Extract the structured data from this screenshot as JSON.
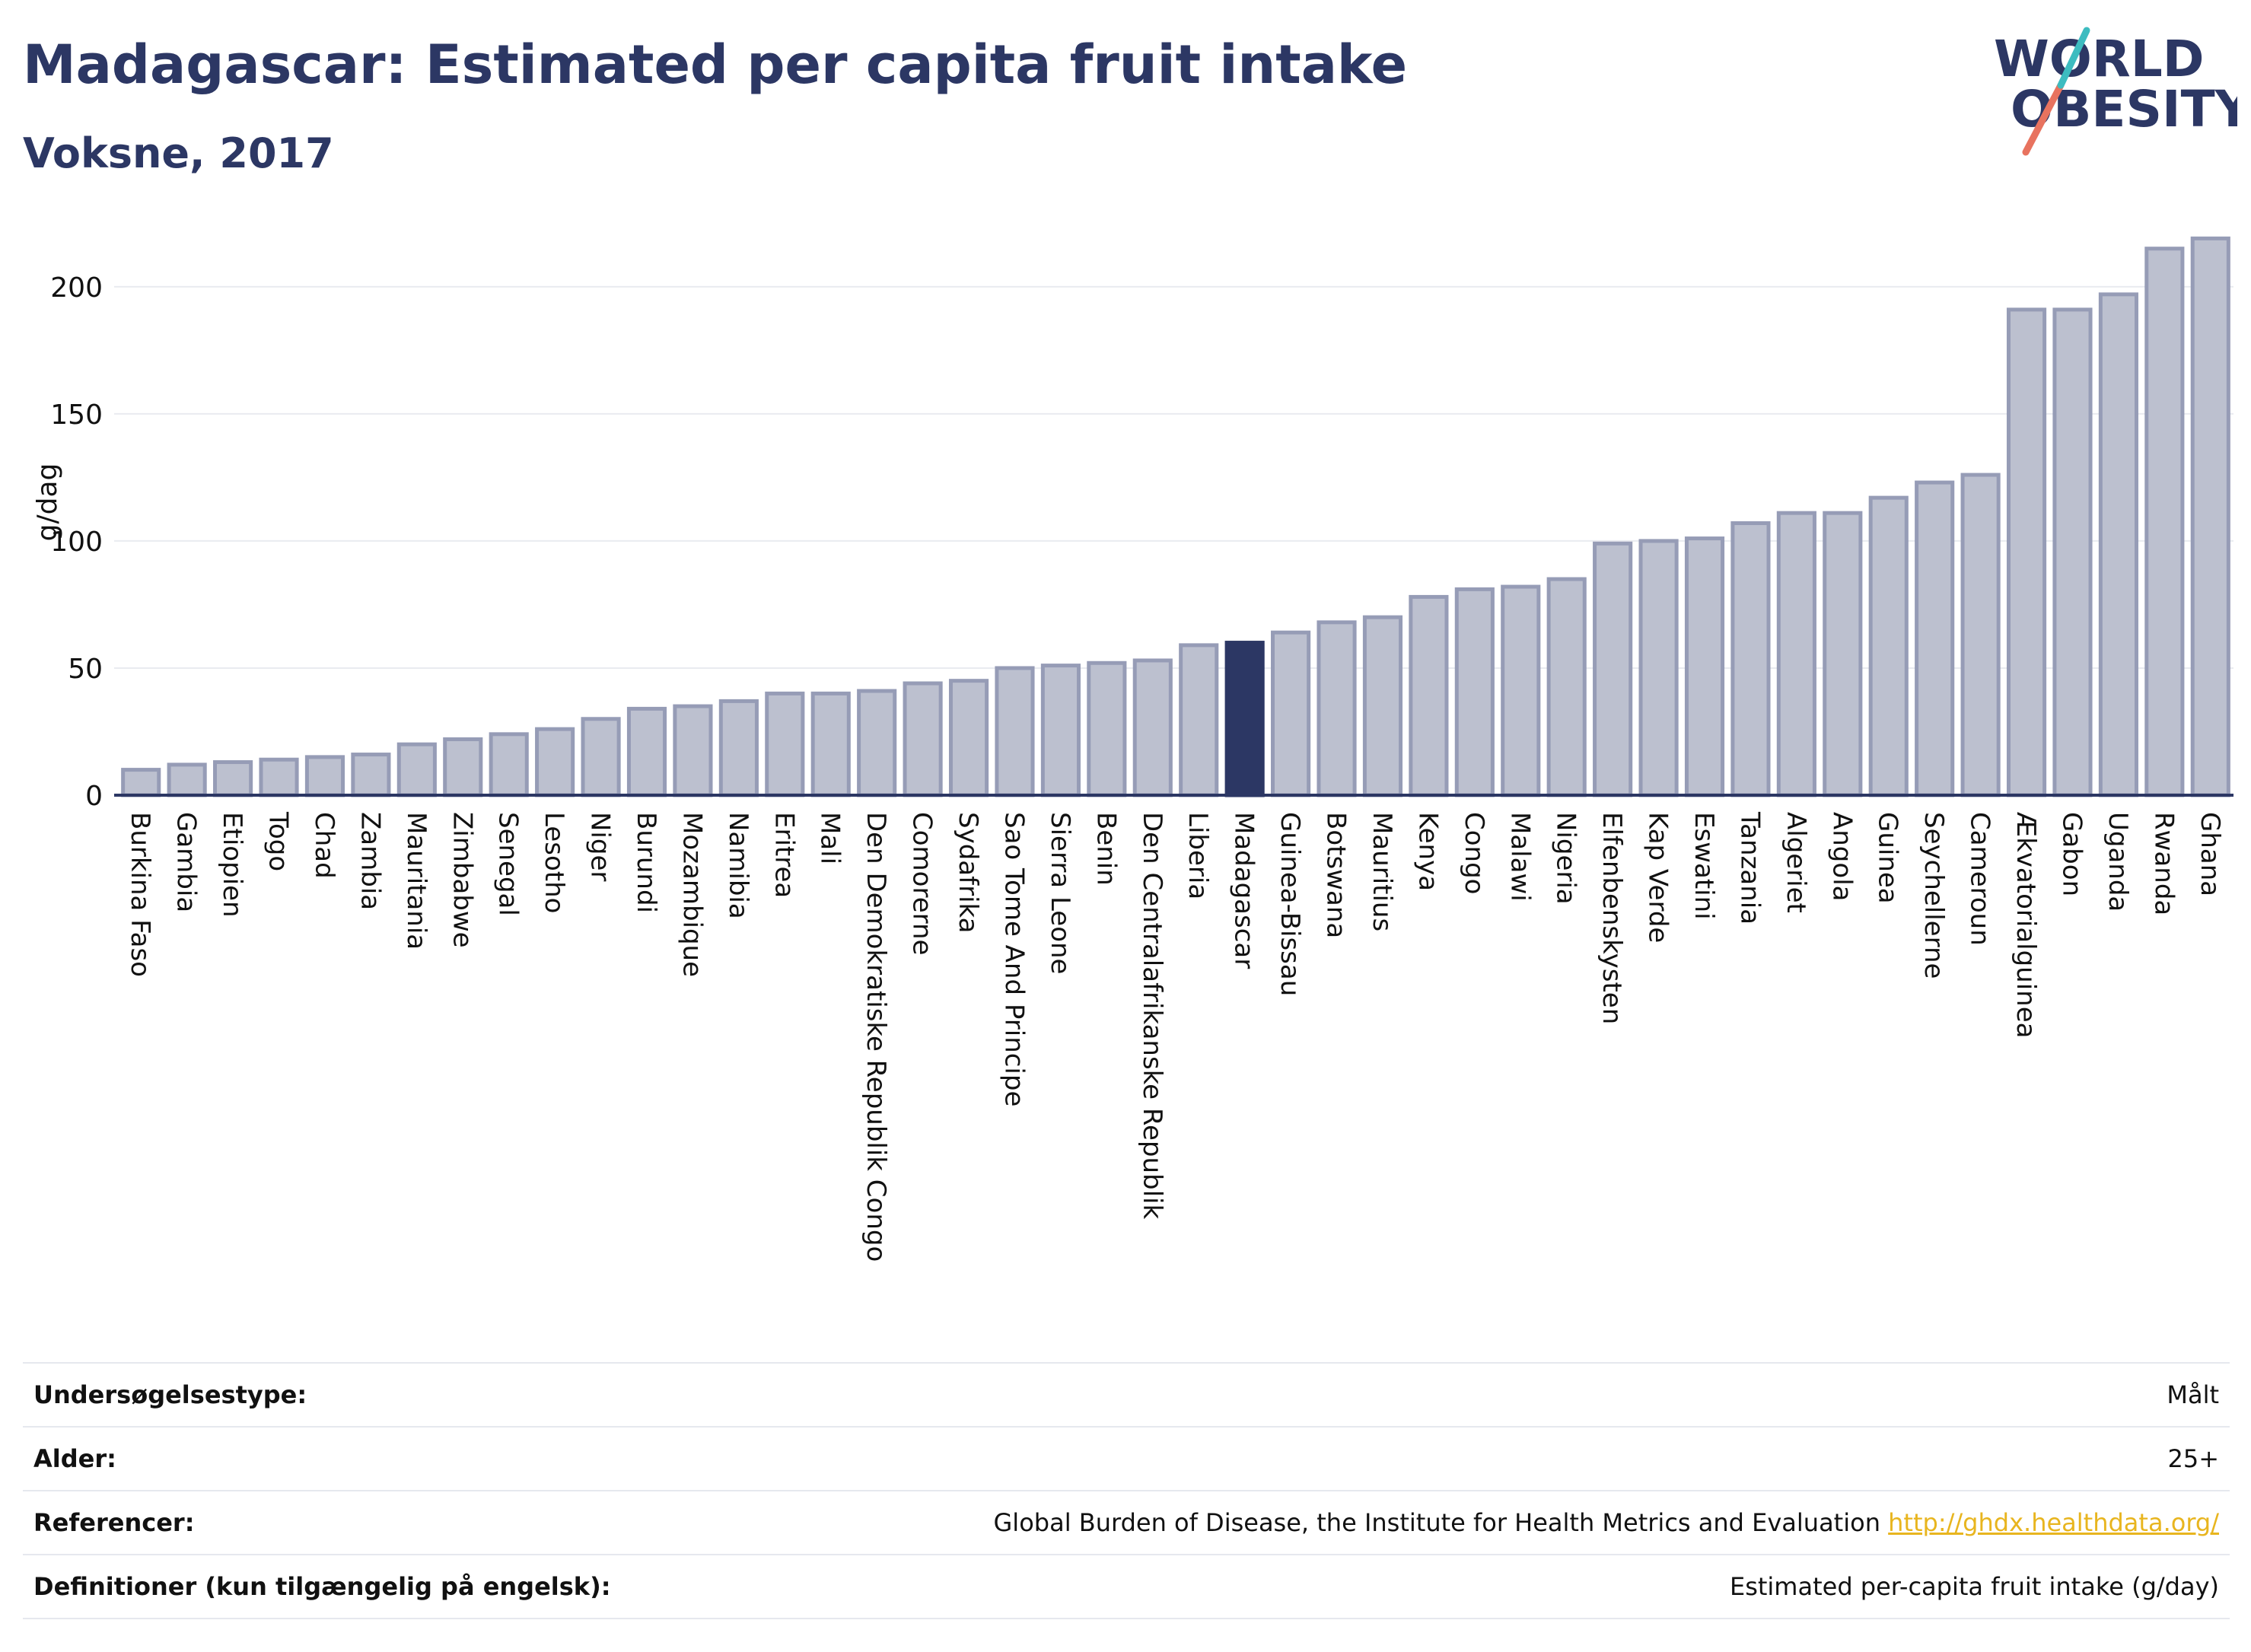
{
  "header": {
    "title": "Madagascar: Estimated per capita fruit intake",
    "subtitle": "Voksne, 2017"
  },
  "logo": {
    "line1": "WORLD",
    "line2": "OBESITY"
  },
  "colors": {
    "bar": "#bcc0cf",
    "bar_stroke": "#969cb6",
    "highlight": "#2c3764",
    "text": "#2c3764",
    "grid": "#e9ebf0",
    "link": "#e8b51f"
  },
  "chart_data": {
    "type": "bar",
    "ylabel": "g/dag",
    "ylim": [
      0,
      220
    ],
    "yticks": [
      0,
      50,
      100,
      150,
      200
    ],
    "highlight": "Madagascar",
    "categories": [
      "Burkina Faso",
      "Gambia",
      "Etiopien",
      "Togo",
      "Chad",
      "Zambia",
      "Mauritania",
      "Zimbabwe",
      "Senegal",
      "Lesotho",
      "Niger",
      "Burundi",
      "Mozambique",
      "Namibia",
      "Eritrea",
      "Mali",
      "Den Demokratiske Republik Congo",
      "Comorerne",
      "Sydafrika",
      "Sao Tome And Principe",
      "Sierra Leone",
      "Benin",
      "Den Centralafrikanske Republik",
      "Liberia",
      "Madagascar",
      "Guinea-Bissau",
      "Botswana",
      "Mauritius",
      "Kenya",
      "Congo",
      "Malawi",
      "Nigeria",
      "Elfenbenskysten",
      "Kap Verde",
      "Eswatini",
      "Tanzania",
      "Algeriet",
      "Angola",
      "Guinea",
      "Seychellerne",
      "Cameroun",
      "Ækvatorialguinea",
      "Gabon",
      "Uganda",
      "Rwanda",
      "Ghana"
    ],
    "values": [
      10,
      12,
      13,
      14,
      15,
      16,
      20,
      22,
      24,
      26,
      30,
      34,
      35,
      37,
      40,
      40,
      41,
      44,
      45,
      50,
      51,
      52,
      53,
      59,
      60,
      64,
      68,
      70,
      78,
      81,
      82,
      85,
      99,
      100,
      101,
      107,
      111,
      111,
      117,
      123,
      126,
      191,
      191,
      197,
      215,
      219
    ]
  },
  "meta": {
    "rows": [
      {
        "label": "Undersøgelsestype:",
        "value": "Målt"
      },
      {
        "label": "Alder:",
        "value": "25+"
      },
      {
        "label": "Referencer:",
        "value": "Global Burden of Disease, the Institute for Health Metrics and Evaluation",
        "link": "http://ghdx.healthdata.org/"
      },
      {
        "label": "Definitioner (kun tilgængelig på engelsk):",
        "value": "Estimated per-capita fruit intake (g/day)"
      }
    ]
  }
}
